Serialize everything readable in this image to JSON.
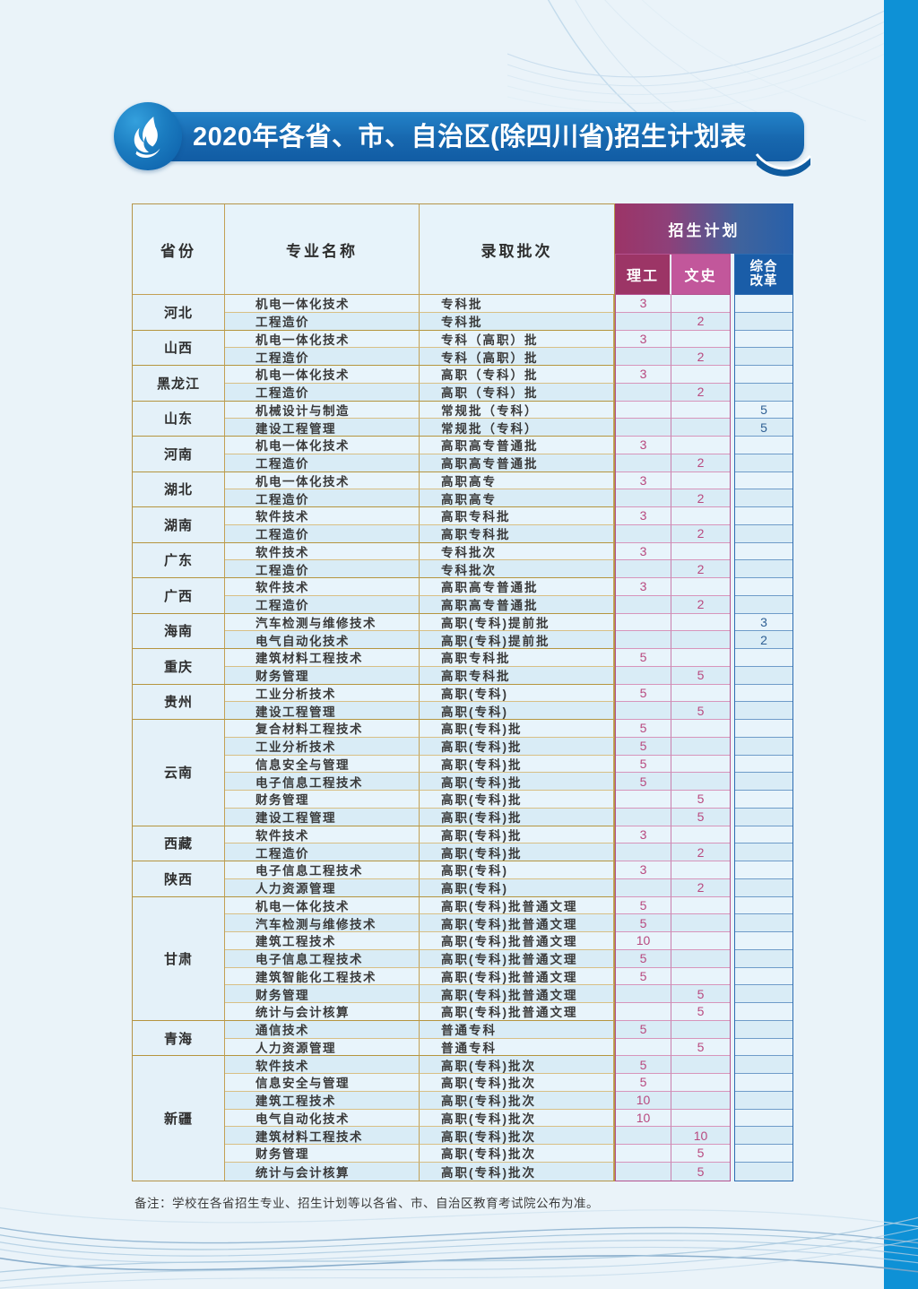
{
  "page": {
    "title": "2020年各省、市、自治区(除四川省)招生计划表",
    "note": "备注：学校在各省招生专业、招生计划等以各省、市、自治区教育考试院公布为准。"
  },
  "colors": {
    "page_background": "#eaf3f9",
    "banner_blue": "#1767ae",
    "right_band_blue": "#0e91d6",
    "table_border_tan": "#b59448",
    "plan_gradient_left": "#9c3467",
    "plan_gradient_right": "#2760aa",
    "ligong_header": "#9c3566",
    "wenshi_header": "#c2579b",
    "zonghe_header": "#1a5da8",
    "pink_number": "#b8497f",
    "blue_number": "#2f6094"
  },
  "icons": {
    "logo": "flame-icon"
  },
  "table": {
    "headers": {
      "province": "省份",
      "major": "专业名称",
      "batch": "录取批次",
      "plan": "招生计划",
      "ligong": "理工",
      "wenshi": "文史",
      "zonghe": "综合改革"
    },
    "provinces": [
      {
        "name": "河北",
        "rows": [
          {
            "major": "机电一体化技术",
            "batch": "专科批",
            "ligong": "3",
            "wenshi": "",
            "zonghe": ""
          },
          {
            "major": "工程造价",
            "batch": "专科批",
            "ligong": "",
            "wenshi": "2",
            "zonghe": ""
          }
        ]
      },
      {
        "name": "山西",
        "rows": [
          {
            "major": "机电一体化技术",
            "batch": "专科（高职）批",
            "ligong": "3",
            "wenshi": "",
            "zonghe": ""
          },
          {
            "major": "工程造价",
            "batch": "专科（高职）批",
            "ligong": "",
            "wenshi": "2",
            "zonghe": ""
          }
        ]
      },
      {
        "name": "黑龙江",
        "rows": [
          {
            "major": "机电一体化技术",
            "batch": "高职（专科）批",
            "ligong": "3",
            "wenshi": "",
            "zonghe": ""
          },
          {
            "major": "工程造价",
            "batch": "高职（专科）批",
            "ligong": "",
            "wenshi": "2",
            "zonghe": ""
          }
        ]
      },
      {
        "name": "山东",
        "rows": [
          {
            "major": "机械设计与制造",
            "batch": "常规批（专科）",
            "ligong": "",
            "wenshi": "",
            "zonghe": "5"
          },
          {
            "major": "建设工程管理",
            "batch": "常规批（专科）",
            "ligong": "",
            "wenshi": "",
            "zonghe": "5"
          }
        ]
      },
      {
        "name": "河南",
        "rows": [
          {
            "major": "机电一体化技术",
            "batch": "高职高专普通批",
            "ligong": "3",
            "wenshi": "",
            "zonghe": ""
          },
          {
            "major": "工程造价",
            "batch": "高职高专普通批",
            "ligong": "",
            "wenshi": "2",
            "zonghe": ""
          }
        ]
      },
      {
        "name": "湖北",
        "rows": [
          {
            "major": "机电一体化技术",
            "batch": "高职高专",
            "ligong": "3",
            "wenshi": "",
            "zonghe": ""
          },
          {
            "major": "工程造价",
            "batch": "高职高专",
            "ligong": "",
            "wenshi": "2",
            "zonghe": ""
          }
        ]
      },
      {
        "name": "湖南",
        "rows": [
          {
            "major": "软件技术",
            "batch": "高职专科批",
            "ligong": "3",
            "wenshi": "",
            "zonghe": ""
          },
          {
            "major": "工程造价",
            "batch": "高职专科批",
            "ligong": "",
            "wenshi": "2",
            "zonghe": ""
          }
        ]
      },
      {
        "name": "广东",
        "rows": [
          {
            "major": "软件技术",
            "batch": "专科批次",
            "ligong": "3",
            "wenshi": "",
            "zonghe": ""
          },
          {
            "major": "工程造价",
            "batch": "专科批次",
            "ligong": "",
            "wenshi": "2",
            "zonghe": ""
          }
        ]
      },
      {
        "name": "广西",
        "rows": [
          {
            "major": "软件技术",
            "batch": "高职高专普通批",
            "ligong": "3",
            "wenshi": "",
            "zonghe": ""
          },
          {
            "major": "工程造价",
            "batch": "高职高专普通批",
            "ligong": "",
            "wenshi": "2",
            "zonghe": ""
          }
        ]
      },
      {
        "name": "海南",
        "rows": [
          {
            "major": "汽车检测与维修技术",
            "batch": "高职(专科)提前批",
            "ligong": "",
            "wenshi": "",
            "zonghe": "3"
          },
          {
            "major": "电气自动化技术",
            "batch": "高职(专科)提前批",
            "ligong": "",
            "wenshi": "",
            "zonghe": "2"
          }
        ]
      },
      {
        "name": "重庆",
        "rows": [
          {
            "major": "建筑材料工程技术",
            "batch": "高职专科批",
            "ligong": "5",
            "wenshi": "",
            "zonghe": ""
          },
          {
            "major": "财务管理",
            "batch": "高职专科批",
            "ligong": "",
            "wenshi": "5",
            "zonghe": ""
          }
        ]
      },
      {
        "name": "贵州",
        "rows": [
          {
            "major": "工业分析技术",
            "batch": "高职(专科)",
            "ligong": "5",
            "wenshi": "",
            "zonghe": ""
          },
          {
            "major": "建设工程管理",
            "batch": "高职(专科)",
            "ligong": "",
            "wenshi": "5",
            "zonghe": ""
          }
        ]
      },
      {
        "name": "云南",
        "rows": [
          {
            "major": "复合材料工程技术",
            "batch": "高职(专科)批",
            "ligong": "5",
            "wenshi": "",
            "zonghe": ""
          },
          {
            "major": "工业分析技术",
            "batch": "高职(专科)批",
            "ligong": "5",
            "wenshi": "",
            "zonghe": ""
          },
          {
            "major": "信息安全与管理",
            "batch": "高职(专科)批",
            "ligong": "5",
            "wenshi": "",
            "zonghe": ""
          },
          {
            "major": "电子信息工程技术",
            "batch": "高职(专科)批",
            "ligong": "5",
            "wenshi": "",
            "zonghe": ""
          },
          {
            "major": "财务管理",
            "batch": "高职(专科)批",
            "ligong": "",
            "wenshi": "5",
            "zonghe": ""
          },
          {
            "major": "建设工程管理",
            "batch": "高职(专科)批",
            "ligong": "",
            "wenshi": "5",
            "zonghe": ""
          }
        ]
      },
      {
        "name": "西藏",
        "rows": [
          {
            "major": "软件技术",
            "batch": "高职(专科)批",
            "ligong": "3",
            "wenshi": "",
            "zonghe": ""
          },
          {
            "major": "工程造价",
            "batch": "高职(专科)批",
            "ligong": "",
            "wenshi": "2",
            "zonghe": ""
          }
        ]
      },
      {
        "name": "陕西",
        "rows": [
          {
            "major": "电子信息工程技术",
            "batch": "高职(专科)",
            "ligong": "3",
            "wenshi": "",
            "zonghe": ""
          },
          {
            "major": "人力资源管理",
            "batch": "高职(专科)",
            "ligong": "",
            "wenshi": "2",
            "zonghe": ""
          }
        ]
      },
      {
        "name": "甘肃",
        "rows": [
          {
            "major": "机电一体化技术",
            "batch": "高职(专科)批普通文理",
            "ligong": "5",
            "wenshi": "",
            "zonghe": ""
          },
          {
            "major": "汽车检测与维修技术",
            "batch": "高职(专科)批普通文理",
            "ligong": "5",
            "wenshi": "",
            "zonghe": ""
          },
          {
            "major": "建筑工程技术",
            "batch": "高职(专科)批普通文理",
            "ligong": "10",
            "wenshi": "",
            "zonghe": ""
          },
          {
            "major": "电子信息工程技术",
            "batch": "高职(专科)批普通文理",
            "ligong": "5",
            "wenshi": "",
            "zonghe": ""
          },
          {
            "major": "建筑智能化工程技术",
            "batch": "高职(专科)批普通文理",
            "ligong": "5",
            "wenshi": "",
            "zonghe": ""
          },
          {
            "major": "财务管理",
            "batch": "高职(专科)批普通文理",
            "ligong": "",
            "wenshi": "5",
            "zonghe": ""
          },
          {
            "major": "统计与会计核算",
            "batch": "高职(专科)批普通文理",
            "ligong": "",
            "wenshi": "5",
            "zonghe": ""
          }
        ]
      },
      {
        "name": "青海",
        "rows": [
          {
            "major": "通信技术",
            "batch": "普通专科",
            "ligong": "5",
            "wenshi": "",
            "zonghe": ""
          },
          {
            "major": "人力资源管理",
            "batch": "普通专科",
            "ligong": "",
            "wenshi": "5",
            "zonghe": ""
          }
        ]
      },
      {
        "name": "新疆",
        "rows": [
          {
            "major": "软件技术",
            "batch": "高职(专科)批次",
            "ligong": "5",
            "wenshi": "",
            "zonghe": ""
          },
          {
            "major": "信息安全与管理",
            "batch": "高职(专科)批次",
            "ligong": "5",
            "wenshi": "",
            "zonghe": ""
          },
          {
            "major": "建筑工程技术",
            "batch": "高职(专科)批次",
            "ligong": "10",
            "wenshi": "",
            "zonghe": ""
          },
          {
            "major": "电气自动化技术",
            "batch": "高职(专科)批次",
            "ligong": "10",
            "wenshi": "",
            "zonghe": ""
          },
          {
            "major": "建筑材料工程技术",
            "batch": "高职(专科)批次",
            "ligong": "",
            "wenshi": "10",
            "zonghe": ""
          },
          {
            "major": "财务管理",
            "batch": "高职(专科)批次",
            "ligong": "",
            "wenshi": "5",
            "zonghe": ""
          },
          {
            "major": "统计与会计核算",
            "batch": "高职(专科)批次",
            "ligong": "",
            "wenshi": "5",
            "zonghe": ""
          }
        ]
      }
    ]
  }
}
